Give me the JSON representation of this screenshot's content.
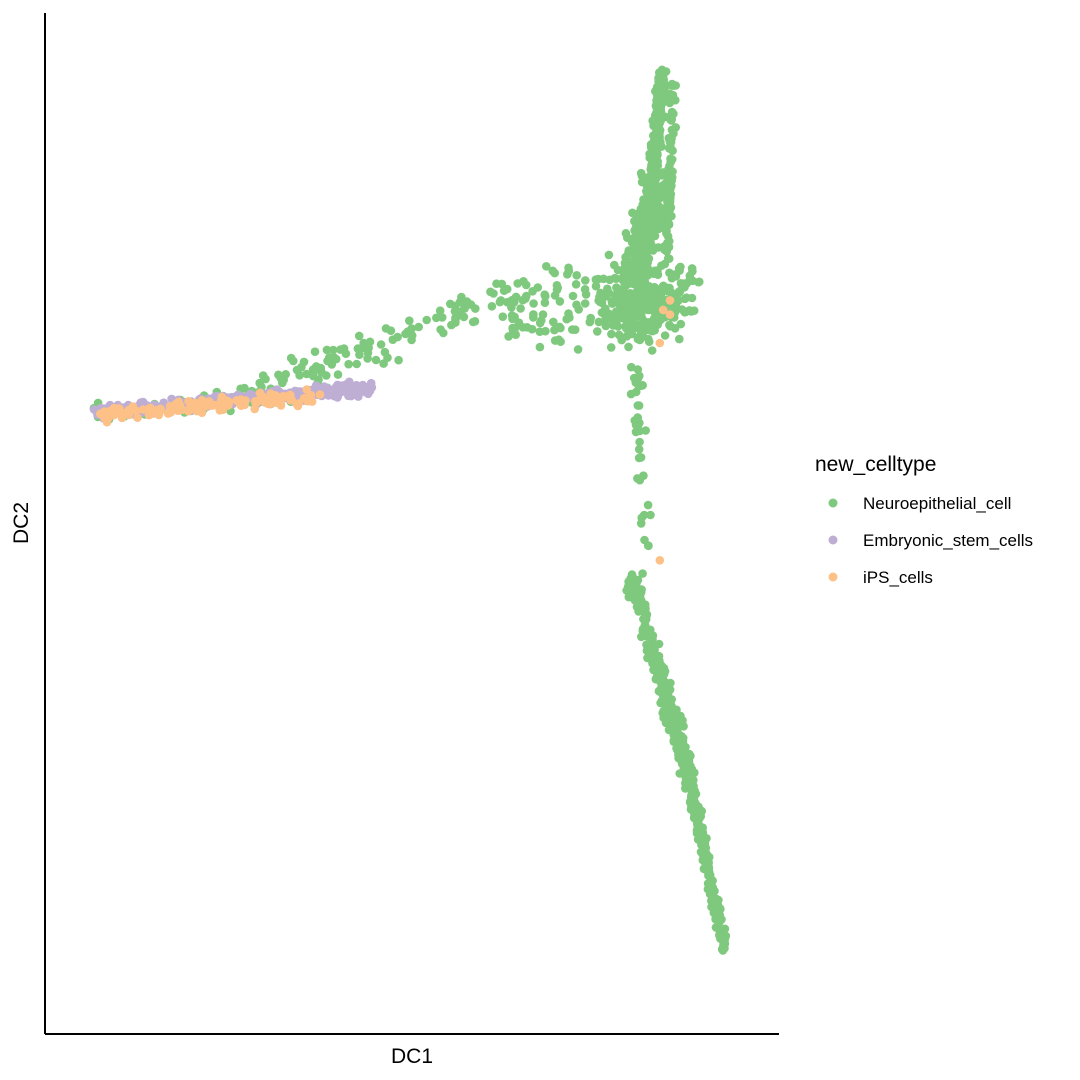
{
  "chart_data": {
    "type": "scatter",
    "xlabel": "DC1",
    "ylabel": "DC2",
    "xlim": [
      0,
      100
    ],
    "ylim": [
      0,
      100
    ],
    "grid": false,
    "axis_ticks_shown": false,
    "legend": {
      "title": "new_celltype",
      "placement": "right"
    },
    "series": [
      {
        "name": "Neuroepithelial_cell",
        "color": "#7FC97F",
        "segments": [
          {
            "from": [
              3,
              61.5
            ],
            "to": [
              37,
              64
            ],
            "spread": 0.5,
            "count": 60
          },
          {
            "from": [
              22,
              63
            ],
            "to": [
              65,
              74
            ],
            "spread": 0.9,
            "count": 120
          },
          {
            "from": [
              63,
              72
            ],
            "to": [
              85,
              74
            ],
            "spread": 2.2,
            "count": 140
          },
          {
            "from": [
              80,
              71
            ],
            "to": [
              90,
              75
            ],
            "spread": 2.0,
            "count": 220
          },
          {
            "from": [
              82,
              74
            ],
            "to": [
              85.5,
              86
            ],
            "spread": 1.6,
            "count": 320
          },
          {
            "from": [
              84.5,
              84
            ],
            "to": [
              86.5,
              97.5
            ],
            "spread": 0.6,
            "count": 230
          },
          {
            "from": [
              87,
              78
            ],
            "to": [
              88,
              97
            ],
            "spread": 0.4,
            "count": 90
          },
          {
            "from": [
              82,
              71
            ],
            "to": [
              84,
              48
            ],
            "spread": 0.8,
            "count": 40
          },
          {
            "from": [
              82,
              44
            ],
            "to": [
              90,
              24
            ],
            "spread": 0.8,
            "count": 230
          },
          {
            "from": [
              90,
              24
            ],
            "to": [
              95.5,
              5
            ],
            "spread": 0.5,
            "count": 210
          }
        ]
      },
      {
        "name": "Embryonic_stem_cells",
        "color": "#BEAED4",
        "segments": [
          {
            "from": [
              3,
              61.8
            ],
            "to": [
              44,
              64.3
            ],
            "spread": 0.35,
            "count": 260
          }
        ]
      },
      {
        "name": "iPS_cells",
        "color": "#FDC086",
        "segments": [
          {
            "from": [
              3.5,
              61.4
            ],
            "to": [
              36,
              63.4
            ],
            "spread": 0.35,
            "count": 150
          }
        ],
        "points": [
          [
            87.5,
            73.5
          ],
          [
            86.5,
            72.5
          ],
          [
            86,
            69
          ],
          [
            86,
            46
          ],
          [
            87.5,
            72
          ]
        ]
      }
    ]
  }
}
